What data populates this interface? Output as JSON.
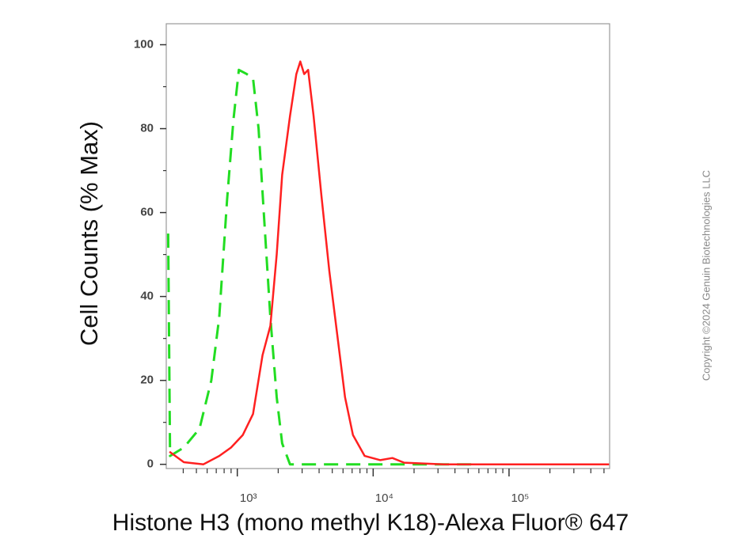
{
  "chart_data": {
    "type": "line",
    "x_label": "Histone H3 (mono methyl K18)-Alexa Fluor® 647",
    "y_label": "Cell Counts (% Max)",
    "annotation": "Copyright ©2024 Genuin Biotechnologies LLC",
    "x_scale": "log",
    "xlim": [
      300,
      550000
    ],
    "ylim": [
      -1,
      105
    ],
    "xticks": [
      {
        "value": 1000,
        "label": "10³"
      },
      {
        "value": 10000,
        "label": "10⁴"
      },
      {
        "value": 100000,
        "label": "10⁵"
      }
    ],
    "xminor_ticks": [
      400,
      500,
      600,
      700,
      800,
      900,
      2000,
      3000,
      4000,
      5000,
      6000,
      7000,
      8000,
      9000,
      20000,
      30000,
      40000,
      50000,
      60000,
      70000,
      80000,
      90000,
      200000,
      300000,
      400000,
      500000
    ],
    "yticks": [
      0,
      20,
      40,
      60,
      80,
      100
    ],
    "yminor_ticks": [
      10,
      30,
      50,
      70,
      90
    ],
    "grid": false,
    "series": [
      {
        "color": "#22dd22",
        "dashed": true,
        "x": [
          310,
          320,
          404,
          527,
          644,
          736,
          841,
          936,
          1027,
          1174,
          1306,
          1434,
          1595,
          1751,
          1949,
          2139,
          2444,
          5090,
          56400
        ],
        "values": [
          55,
          2,
          4,
          8.5,
          20,
          35,
          63,
          82,
          94,
          93,
          92,
          80,
          56,
          35,
          16,
          5,
          0,
          0,
          0
        ]
      },
      {
        "color": "#ff2020",
        "dashed": false,
        "x": [
          317,
          404,
          563,
          736,
          899,
          1098,
          1306,
          1533,
          1751,
          1949,
          2139,
          2444,
          2719,
          2907,
          3108,
          3323,
          3645,
          4164,
          4758,
          5436,
          6211,
          7097,
          8660,
          11300,
          13850,
          16900,
          33000,
          211000,
          545000
        ],
        "values": [
          3,
          0.5,
          0,
          2,
          4,
          7,
          12,
          26,
          33,
          50,
          69,
          83,
          93,
          96,
          93,
          94,
          83,
          64,
          46,
          31,
          16,
          7,
          2,
          1,
          1.5,
          0.4,
          0,
          0,
          0
        ]
      }
    ]
  }
}
